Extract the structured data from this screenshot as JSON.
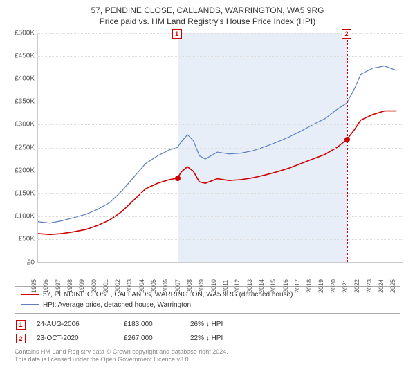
{
  "title": "57, PENDINE CLOSE, CALLANDS, WARRINGTON, WA5 9RG",
  "subtitle": "Price paid vs. HM Land Registry's House Price Index (HPI)",
  "chart": {
    "type": "line",
    "background_color": "#ffffff",
    "grid_color": "#dddddd",
    "axis_color": "#cccccc",
    "shade_color": "#e8eef7",
    "y": {
      "min": 0,
      "max": 500000,
      "tick_step": 50000,
      "ticks": [
        "£0",
        "£50K",
        "£100K",
        "£150K",
        "£200K",
        "£250K",
        "£300K",
        "£350K",
        "£400K",
        "£450K",
        "£500K"
      ],
      "label_fontsize": 10
    },
    "x": {
      "min": 1995,
      "max": 2025.5,
      "ticks": [
        1995,
        1996,
        1997,
        1998,
        1999,
        2000,
        2001,
        2002,
        2003,
        2004,
        2005,
        2006,
        2007,
        2008,
        2009,
        2010,
        2011,
        2012,
        2013,
        2014,
        2015,
        2016,
        2017,
        2018,
        2019,
        2020,
        2021,
        2022,
        2023,
        2024,
        2025
      ],
      "label_fontsize": 9
    },
    "shade_range": [
      2006.65,
      2020.82
    ],
    "markers": [
      {
        "id": "1",
        "x": 2006.65,
        "label_top": -6
      },
      {
        "id": "2",
        "x": 2020.82,
        "label_top": -6
      }
    ],
    "series": [
      {
        "name": "price_paid",
        "label": "57, PENDINE CLOSE, CALLANDS, WARRINGTON, WA5 9RG (detached house)",
        "color": "#cc0000",
        "line_width": 1.6,
        "data": [
          [
            1995.0,
            62000
          ],
          [
            1996.0,
            60000
          ],
          [
            1997.0,
            62000
          ],
          [
            1998.0,
            66000
          ],
          [
            1999.0,
            71000
          ],
          [
            2000.0,
            80000
          ],
          [
            2001.0,
            92000
          ],
          [
            2002.0,
            110000
          ],
          [
            2003.0,
            135000
          ],
          [
            2004.0,
            160000
          ],
          [
            2005.0,
            172000
          ],
          [
            2006.0,
            180000
          ],
          [
            2006.65,
            183000
          ],
          [
            2007.0,
            197000
          ],
          [
            2007.5,
            208000
          ],
          [
            2008.0,
            198000
          ],
          [
            2008.5,
            175000
          ],
          [
            2009.0,
            172000
          ],
          [
            2010.0,
            182000
          ],
          [
            2011.0,
            178000
          ],
          [
            2012.0,
            180000
          ],
          [
            2013.0,
            184000
          ],
          [
            2014.0,
            190000
          ],
          [
            2015.0,
            197000
          ],
          [
            2016.0,
            205000
          ],
          [
            2017.0,
            215000
          ],
          [
            2018.0,
            225000
          ],
          [
            2019.0,
            235000
          ],
          [
            2020.0,
            250000
          ],
          [
            2020.82,
            267000
          ],
          [
            2021.5,
            290000
          ],
          [
            2022.0,
            310000
          ],
          [
            2023.0,
            322000
          ],
          [
            2024.0,
            330000
          ],
          [
            2025.0,
            330000
          ]
        ]
      },
      {
        "name": "hpi",
        "label": "HPI: Average price, detached house, Warrington",
        "color": "#5b7fbf",
        "line_width": 1.2,
        "data": [
          [
            1995.0,
            88000
          ],
          [
            1996.0,
            85000
          ],
          [
            1997.0,
            90000
          ],
          [
            1998.0,
            97000
          ],
          [
            1999.0,
            104000
          ],
          [
            2000.0,
            115000
          ],
          [
            2001.0,
            130000
          ],
          [
            2002.0,
            155000
          ],
          [
            2003.0,
            185000
          ],
          [
            2004.0,
            215000
          ],
          [
            2005.0,
            232000
          ],
          [
            2006.0,
            245000
          ],
          [
            2006.65,
            250000
          ],
          [
            2007.0,
            263000
          ],
          [
            2007.5,
            278000
          ],
          [
            2008.0,
            265000
          ],
          [
            2008.5,
            232000
          ],
          [
            2009.0,
            225000
          ],
          [
            2010.0,
            240000
          ],
          [
            2011.0,
            236000
          ],
          [
            2012.0,
            238000
          ],
          [
            2013.0,
            243000
          ],
          [
            2014.0,
            252000
          ],
          [
            2015.0,
            262000
          ],
          [
            2016.0,
            273000
          ],
          [
            2017.0,
            286000
          ],
          [
            2018.0,
            300000
          ],
          [
            2019.0,
            313000
          ],
          [
            2020.0,
            333000
          ],
          [
            2020.82,
            347000
          ],
          [
            2021.5,
            380000
          ],
          [
            2022.0,
            410000
          ],
          [
            2023.0,
            423000
          ],
          [
            2024.0,
            428000
          ],
          [
            2025.0,
            418000
          ]
        ]
      }
    ],
    "sale_points": [
      {
        "x": 2006.65,
        "y": 183000,
        "color": "#cc0000"
      },
      {
        "x": 2020.82,
        "y": 267000,
        "color": "#cc0000"
      }
    ]
  },
  "legend": {
    "rows": [
      {
        "color": "#cc0000",
        "label": "57, PENDINE CLOSE, CALLANDS, WARRINGTON, WA5 9RG (detached house)"
      },
      {
        "color": "#5b7fbf",
        "label": "HPI: Average price, detached house, Warrington"
      }
    ]
  },
  "sales": [
    {
      "id": "1",
      "date": "24-AUG-2006",
      "price": "£183,000",
      "diff": "26% ↓ HPI"
    },
    {
      "id": "2",
      "date": "23-OCT-2020",
      "price": "£267,000",
      "diff": "22% ↓ HPI"
    }
  ],
  "footer": {
    "line1": "Contains HM Land Registry data © Crown copyright and database right 2024.",
    "line2": "This data is licensed under the Open Government Licence v3.0."
  }
}
